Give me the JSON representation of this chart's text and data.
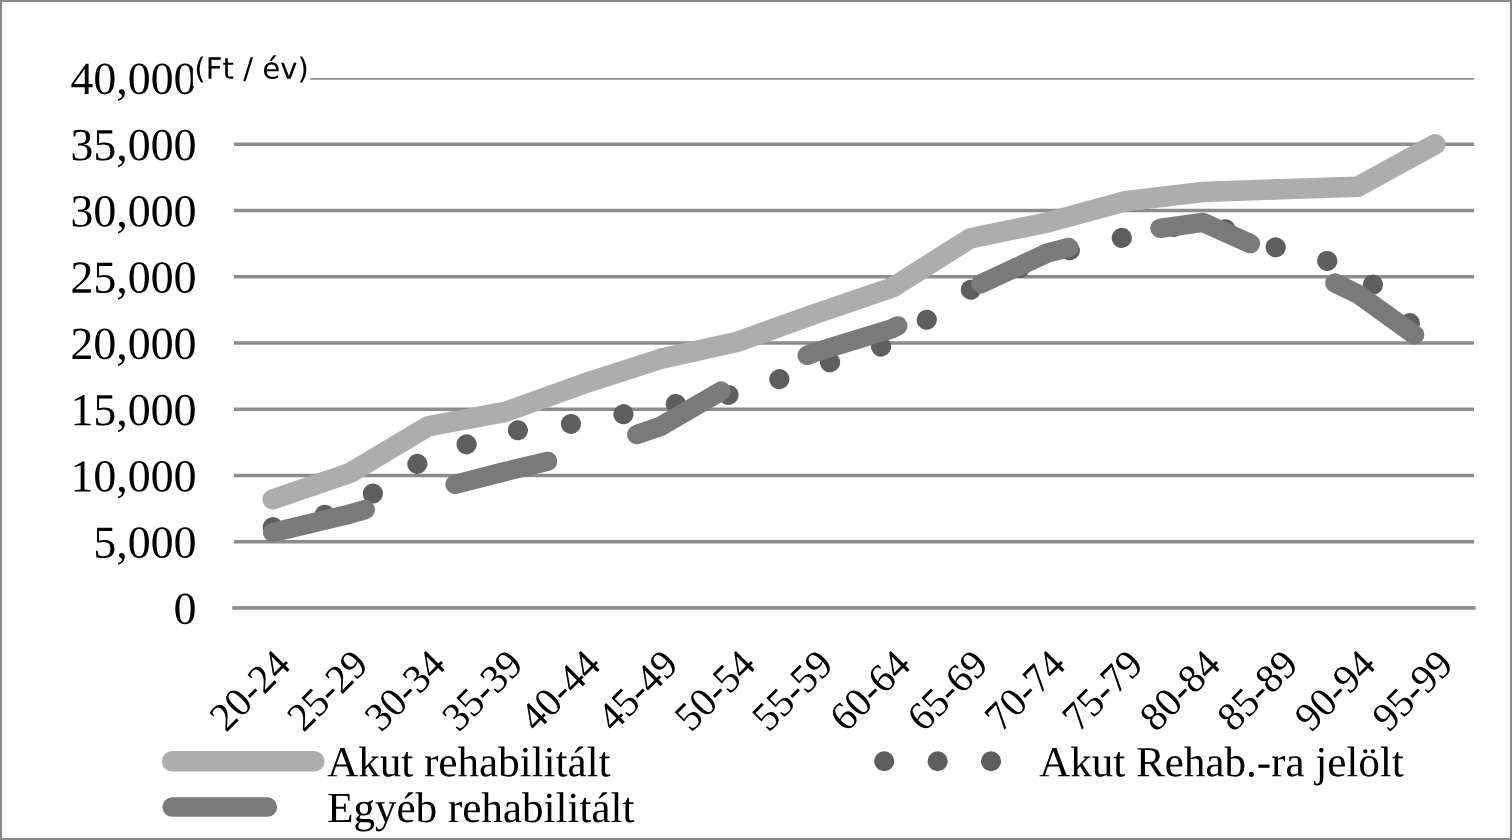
{
  "chart_data": {
    "type": "line",
    "ylabel": "(Ft / év)",
    "categories": [
      "20-24",
      "25-29",
      "30-34",
      "35-39",
      "40-44",
      "45-49",
      "50-54",
      "55-59",
      "60-64",
      "65-69",
      "70-74",
      "75-79",
      "80-84",
      "85-89",
      "90-94",
      "95-99"
    ],
    "series": [
      {
        "name": "Akut rehabilitált",
        "color": "#adadad",
        "line_style": "solid",
        "values": [
          8200,
          10200,
          13700,
          14800,
          16900,
          18800,
          20100,
          22200,
          24200,
          27900,
          29100,
          30700,
          31400,
          31600,
          31800,
          35000
        ]
      },
      {
        "name": "Akut Rehab.-ra jelölt",
        "color": "#5e5e5e",
        "line_style": "dotted",
        "values": [
          6100,
          7500,
          11400,
          13300,
          14000,
          15200,
          16200,
          18200,
          20000,
          24000,
          26600,
          28000,
          29200,
          27100,
          25600,
          19500
        ]
      },
      {
        "name": "Egyéb rehabilitált",
        "color": "#7a7a7a",
        "line_style": "dashed",
        "values": [
          5700,
          7100,
          8800,
          10300,
          11700,
          13700,
          17100,
          19300,
          21100,
          24100,
          26800,
          28300,
          29100,
          26500,
          23700,
          19500
        ]
      }
    ],
    "ylim": [
      0,
      40000
    ],
    "yticks": [
      0,
      {
        "value": 5000,
        "label": "5,000"
      },
      {
        "value": 10000,
        "label": "10,000"
      },
      {
        "value": 15000,
        "label": "15,000"
      },
      {
        "value": 20000,
        "label": "20,000"
      },
      {
        "value": 25000,
        "label": "25,000"
      },
      {
        "value": 30000,
        "label": "30,000"
      },
      {
        "value": 35000,
        "label": "35,000"
      },
      {
        "value": 40000,
        "label": "40,000"
      }
    ],
    "grid": "y",
    "legend": "bottom"
  }
}
